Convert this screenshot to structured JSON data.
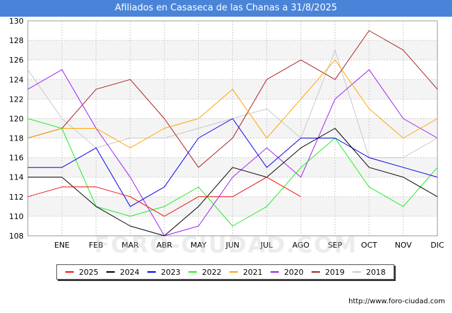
{
  "chart_data": {
    "type": "line",
    "title": "Afiliados en Casaseca de las Chanas a 31/8/2025",
    "categories": [
      "",
      "ENE",
      "FEB",
      "MAR",
      "ABR",
      "MAY",
      "JUN",
      "JUL",
      "AGO",
      "SEP",
      "OCT",
      "NOV",
      "DIC"
    ],
    "ylim": [
      108,
      130
    ],
    "yticks": [
      108,
      110,
      112,
      114,
      116,
      118,
      120,
      122,
      124,
      126,
      128,
      130
    ],
    "grid": true,
    "legend_position": "bottom",
    "series": [
      {
        "name": "2025",
        "color": "#ee1111",
        "values": [
          112,
          113,
          113,
          112,
          110,
          112,
          112,
          114,
          112,
          null,
          null,
          null,
          null
        ]
      },
      {
        "name": "2024",
        "color": "#000000",
        "values": [
          114,
          114,
          111,
          109,
          108,
          111,
          115,
          114,
          117,
          119,
          115,
          114,
          112
        ]
      },
      {
        "name": "2023",
        "color": "#0000ee",
        "values": [
          115,
          115,
          117,
          111,
          113,
          118,
          120,
          115,
          118,
          118,
          116,
          115,
          114
        ]
      },
      {
        "name": "2022",
        "color": "#22ee22",
        "values": [
          120,
          119,
          111,
          110,
          111,
          113,
          109,
          111,
          115,
          118,
          113,
          111,
          115
        ]
      },
      {
        "name": "2021",
        "color": "#ffa500",
        "values": [
          118,
          119,
          119,
          117,
          119,
          120,
          123,
          118,
          122,
          126,
          121,
          118,
          120
        ]
      },
      {
        "name": "2020",
        "color": "#a020f0",
        "values": [
          123,
          125,
          119,
          114,
          108,
          109,
          114,
          117,
          114,
          122,
          125,
          120,
          118
        ]
      },
      {
        "name": "2019",
        "color": "#aa2222",
        "values": [
          118,
          119,
          123,
          124,
          120,
          115,
          118,
          124,
          126,
          124,
          129,
          127,
          123
        ]
      },
      {
        "name": "2018",
        "color": "#c8c8c8",
        "values": [
          125,
          120,
          117,
          118,
          118,
          119,
          120,
          121,
          118,
          127,
          116,
          116,
          118
        ]
      }
    ]
  },
  "source_text": "http://www.foro-ciudad.com",
  "watermark_text": "FORO-CIUDAD.COM"
}
